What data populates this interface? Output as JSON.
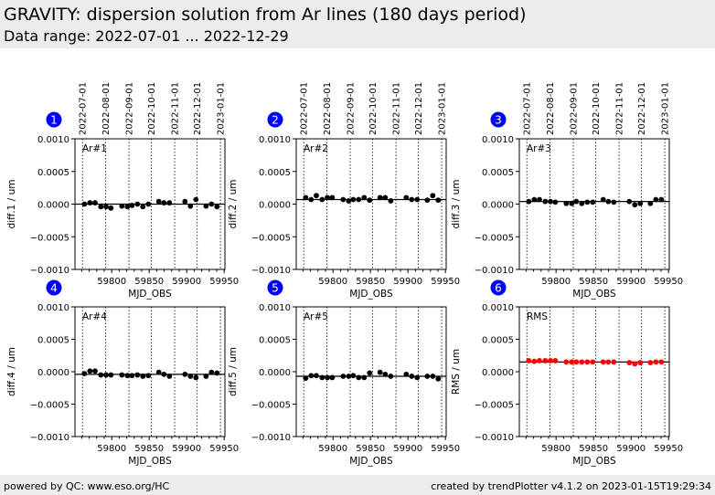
{
  "header": {
    "title": "GRAVITY: dispersion solution from Ar lines (180 days period)",
    "subtitle": "Data range: 2022-07-01 ... 2022-12-29"
  },
  "footer": {
    "left": "powered by QC: www.eso.org/HC",
    "right": "created by trendPlotter v4.1.2 on 2023-01-15T19:29:34"
  },
  "colors": {
    "badge": "#0000ff",
    "points_default": "#000000",
    "points_rms": "#ff0000",
    "header_bg": "#ececec"
  },
  "chart_data": {
    "type": "scatter",
    "shared": {
      "xlabel": "MJD_OBS",
      "xlim": [
        59751,
        59951
      ],
      "xticks": [
        59800,
        59850,
        59900,
        59950
      ],
      "xtick_labels": [
        "59800",
        "59850",
        "59900",
        "59950"
      ],
      "ylim": [
        -0.001,
        0.001
      ],
      "yticks": [
        -0.001,
        -0.0005,
        0.0,
        0.0005,
        0.001
      ],
      "ytick_labels": [
        "−0.0010",
        "−0.0005",
        "0.0000",
        "0.0005",
        "0.0010"
      ],
      "date_markers_mjd": [
        59761,
        59792,
        59823,
        59853,
        59884,
        59914,
        59945
      ],
      "date_labels": [
        "2022-07-01",
        "2022-08-01",
        "2022-09-01",
        "2022-10-01",
        "2022-11-01",
        "2022-12-01",
        "2023-01-01"
      ],
      "x": [
        59763.6,
        59770.9,
        59777.8,
        59785.5,
        59792.5,
        59799.0,
        59813.6,
        59820.9,
        59827.0,
        59834.3,
        59841.6,
        59848.9,
        59862.8,
        59869.7,
        59877.0,
        59897.7,
        59905.0,
        59912.3,
        59925.8,
        59933.1,
        59940.4
      ]
    },
    "panels": [
      {
        "badge": "1",
        "label": "Ar#1",
        "ylabel": "diff.1 / um",
        "mean": 0.0,
        "color": "#000000",
        "values": [
          0.0,
          2e-05,
          2e-05,
          -4e-05,
          -4e-05,
          -6e-05,
          -3e-05,
          -4e-05,
          -2e-05,
          0.0,
          -4e-05,
          0.0,
          4e-05,
          2e-05,
          2e-05,
          4e-05,
          -3e-05,
          7e-05,
          -3e-05,
          0.0,
          -4e-05
        ]
      },
      {
        "badge": "2",
        "label": "Ar#2",
        "ylabel": "diff.2 / um",
        "mean": 7e-05,
        "color": "#000000",
        "values": [
          0.0001,
          7e-05,
          0.00013,
          7e-05,
          0.0001,
          0.0001,
          7e-05,
          5e-05,
          7e-05,
          7e-05,
          0.0001,
          6e-05,
          0.0001,
          0.0001,
          5e-05,
          0.0001,
          7e-05,
          7e-05,
          6e-05,
          0.00013,
          6e-05
        ]
      },
      {
        "badge": "3",
        "label": "Ar#3",
        "ylabel": "diff.3 / um",
        "mean": 4e-05,
        "color": "#000000",
        "values": [
          4e-05,
          7e-05,
          7e-05,
          4e-05,
          4e-05,
          3e-05,
          1e-05,
          1e-05,
          4e-05,
          1e-05,
          3e-05,
          3e-05,
          7e-05,
          4e-05,
          3e-05,
          4e-05,
          -1e-05,
          1e-05,
          1e-05,
          7e-05,
          7e-05
        ]
      },
      {
        "badge": "4",
        "label": "Ar#4",
        "ylabel": "diff.4 / um",
        "mean": -4e-05,
        "color": "#000000",
        "values": [
          -3e-05,
          1e-05,
          1e-05,
          -5e-05,
          -5e-05,
          -5e-05,
          -5e-05,
          -6e-05,
          -6e-05,
          -5e-05,
          -7e-05,
          -6e-05,
          -1e-05,
          -4e-05,
          -7e-05,
          -4e-05,
          -7e-05,
          -9e-05,
          -7e-05,
          -1e-05,
          -2e-05
        ]
      },
      {
        "badge": "5",
        "label": "Ar#5",
        "ylabel": "diff.5 / um",
        "mean": -7e-05,
        "color": "#000000",
        "values": [
          -0.0001,
          -6e-05,
          -6e-05,
          -9e-05,
          -9e-05,
          -9e-05,
          -7e-05,
          -7e-05,
          -6e-05,
          -9e-05,
          -9e-05,
          -2e-05,
          -1e-05,
          -4e-05,
          -7e-05,
          -4e-05,
          -7e-05,
          -9e-05,
          -7e-05,
          -7e-05,
          -0.00011
        ]
      },
      {
        "badge": "6",
        "label": "RMS",
        "ylabel": "RMS / um",
        "mean": 0.00015,
        "color": "#ff0000",
        "values": [
          0.00017,
          0.00016,
          0.00017,
          0.00017,
          0.00017,
          0.00017,
          0.00015,
          0.00015,
          0.00015,
          0.00015,
          0.00015,
          0.00015,
          0.00015,
          0.00015,
          0.00015,
          0.00014,
          0.00012,
          0.00014,
          0.00014,
          0.00015,
          0.00015
        ]
      }
    ]
  }
}
